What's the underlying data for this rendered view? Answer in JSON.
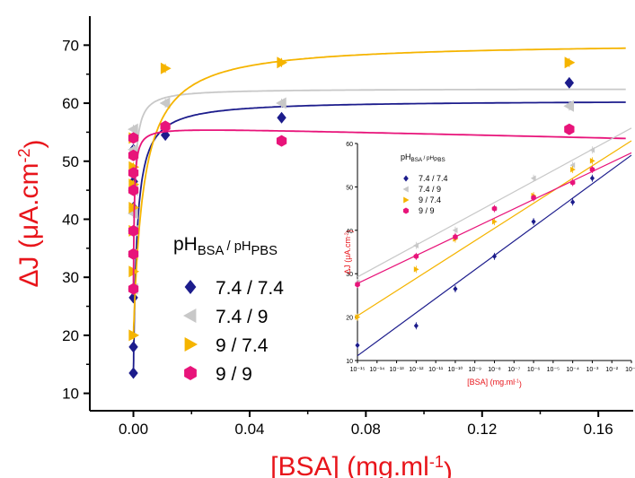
{
  "colors": {
    "7.4 / 7.4": "#1c1c8c",
    "7.4 / 9": "#c8c8c8",
    "9 / 7.4": "#f5b400",
    "9 / 9": "#e8147a",
    "axis_label": "#e8151b"
  },
  "chart_data": [
    {
      "type": "scatter",
      "ylabel": "ΔJ (μA.cm⁻²)",
      "xlabel": "[BSA] (mg.ml⁻¹)",
      "xlim": [
        -0.015,
        0.172
      ],
      "ylim": [
        7,
        75
      ],
      "xticks": [
        "0.00",
        "0.04",
        "0.08",
        "0.12",
        "0.16"
      ],
      "yticks": [
        "10",
        "20",
        "30",
        "40",
        "50",
        "60",
        "70"
      ],
      "legend_title": {
        "main": "pH",
        "sub1": "BSA",
        "sep": " / pH",
        "sub2": "PBS"
      },
      "legend_placement": "center",
      "series": [
        {
          "name": "7.4 / 7.4",
          "marker": "diamond",
          "x": [
            0,
            0,
            0,
            0,
            0,
            0,
            0,
            0.011,
            0.051,
            0.15
          ],
          "y": [
            13.5,
            18,
            26.5,
            34,
            42,
            46.5,
            52,
            54.5,
            57.5,
            63.5
          ],
          "fit": {
            "type": "langmuir",
            "Jmax": 60.5,
            "b": 0.0012,
            "y0": 13
          }
        },
        {
          "name": "7.4 / 9",
          "marker": "triangle-left",
          "x": [
            0,
            0,
            0,
            0,
            0,
            0,
            0,
            0.011,
            0.051,
            0.15
          ],
          "y": [
            28,
            34,
            38,
            41,
            45,
            52,
            55.5,
            60,
            60,
            59.5
          ],
          "fit": {
            "type": "langmuir",
            "Jmax": 62.5,
            "b": 0.0005,
            "y0": 27
          }
        },
        {
          "name": "9 / 7.4",
          "marker": "triangle-right",
          "x": [
            0,
            0,
            0,
            0,
            0,
            0,
            0,
            0.011,
            0.051,
            0.15
          ],
          "y": [
            20,
            31,
            38,
            42,
            46,
            49,
            54,
            66,
            67,
            67
          ],
          "fit": {
            "type": "langmuir",
            "Jmax": 70.5,
            "b": 0.0035,
            "y0": 20
          }
        },
        {
          "name": "9 / 9",
          "marker": "hexagon",
          "x": [
            0,
            0,
            0,
            0,
            0,
            0,
            0,
            0.011,
            0.051,
            0.15
          ],
          "y": [
            28,
            34,
            38,
            45,
            48,
            51,
            54,
            56,
            53.5,
            55.5
          ],
          "fit": {
            "type": "langmuir-peak",
            "Jmax": 55,
            "b": 0.0003,
            "y0": 27
          }
        }
      ]
    },
    {
      "type": "scatter",
      "ylabel": "ΔJ (μA.cm⁻²)",
      "xlabel": "[BSA]  (mg.ml⁻¹)",
      "x_scale": "log",
      "xlim": [
        -15,
        -1
      ],
      "ylim": [
        10,
        60
      ],
      "xticks": [
        "10⁻¹⁵",
        "10⁻¹⁴",
        "10⁻¹³",
        "10⁻¹²",
        "10⁻¹¹",
        "10⁻¹⁰",
        "10⁻⁹",
        "10⁻⁸",
        "10⁻⁷",
        "10⁻⁶",
        "10⁻⁵",
        "10⁻⁴",
        "10⁻³",
        "10⁻²",
        "10⁻¹"
      ],
      "yticks": [
        "10",
        "20",
        "30",
        "40",
        "50",
        "60"
      ],
      "legend_title": {
        "main": "pH",
        "sub1": "BSA",
        "sep": " / pH",
        "sub2": "PBS"
      },
      "legend_placement": "top-left",
      "series": [
        {
          "name": "7.4 / 7.4",
          "marker": "diamond",
          "x": [
            -15,
            -12,
            -10,
            -8,
            -6,
            -4,
            -3
          ],
          "y": [
            13.5,
            18,
            26.5,
            34,
            42,
            46.5,
            52
          ],
          "fit": {
            "slope": 3.3,
            "intercept": 60.6
          }
        },
        {
          "name": "7.4 / 9",
          "marker": "triangle-left",
          "x": [
            -15,
            -12,
            -10,
            -8,
            -6,
            -4,
            -3
          ],
          "y": [
            28,
            36.5,
            40,
            45,
            52,
            55,
            58.5
          ],
          "fit": {
            "slope": 2.45,
            "intercept": 66
          }
        },
        {
          "name": "9 / 7.4",
          "marker": "triangle-right",
          "x": [
            -15,
            -12,
            -10,
            -8,
            -6,
            -4,
            -3
          ],
          "y": [
            20,
            31,
            38,
            42,
            48,
            54,
            56
          ],
          "fit": {
            "slope": 2.88,
            "intercept": 63.5
          }
        },
        {
          "name": "9 / 9",
          "marker": "hexagon",
          "x": [
            -15,
            -12,
            -10,
            -8,
            -6,
            -4,
            -3
          ],
          "y": [
            27.5,
            34,
            38.5,
            45,
            47.5,
            51,
            54
          ],
          "fit": {
            "slope": 2.15,
            "intercept": 60
          }
        }
      ]
    }
  ]
}
